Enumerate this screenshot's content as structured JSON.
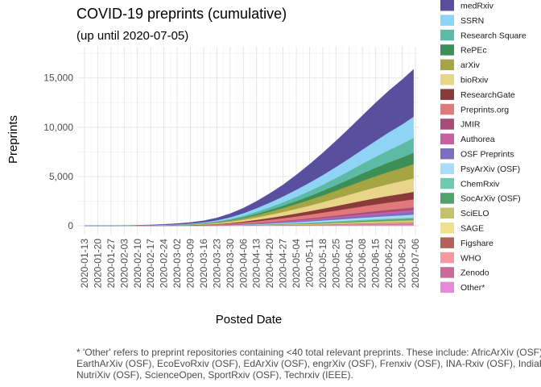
{
  "chart_data": {
    "type": "area",
    "stacked": true,
    "title": "COVID-19 preprints (cumulative)",
    "subtitle": "(up until 2020-07-05)",
    "xlabel": "Posted Date",
    "ylabel": "Preprints",
    "x_range": [
      "2020-01-13",
      "2020-07-05"
    ],
    "ylim": [
      0,
      18000
    ],
    "y_ticks": [
      0,
      5000,
      10000,
      15000
    ],
    "y_tick_labels": [
      "0",
      "5,000",
      "10,000",
      "15,000"
    ],
    "x_tick_labels": [
      "2020-01-13",
      "2020-01-20",
      "2020-01-27",
      "2020-02-03",
      "2020-02-10",
      "2020-02-17",
      "2020-02-24",
      "2020-03-02",
      "2020-03-09",
      "2020-03-16",
      "2020-03-23",
      "2020-03-30",
      "2020-04-06",
      "2020-04-13",
      "2020-04-20",
      "2020-04-27",
      "2020-05-04",
      "2020-05-11",
      "2020-05-18",
      "2020-05-25",
      "2020-06-01",
      "2020-06-08",
      "2020-06-15",
      "2020-06-22",
      "2020-06-29",
      "2020-07-06"
    ],
    "grid": true,
    "legend_position": "right",
    "x": [
      "2020-01-13",
      "2020-01-20",
      "2020-01-27",
      "2020-02-03",
      "2020-02-10",
      "2020-02-17",
      "2020-02-24",
      "2020-03-02",
      "2020-03-09",
      "2020-03-16",
      "2020-03-23",
      "2020-03-30",
      "2020-04-06",
      "2020-04-13",
      "2020-04-20",
      "2020-04-27",
      "2020-05-04",
      "2020-05-11",
      "2020-05-18",
      "2020-05-25",
      "2020-06-01",
      "2020-06-08",
      "2020-06-15",
      "2020-06-22",
      "2020-06-29",
      "2020-07-05"
    ],
    "series": [
      {
        "name": "medRxiv",
        "color": "#5a4f9f",
        "values": [
          0,
          0,
          0,
          5,
          15,
          30,
          50,
          75,
          110,
          160,
          240,
          370,
          520,
          700,
          930,
          1180,
          1500,
          1860,
          2240,
          2640,
          3040,
          3450,
          3860,
          4220,
          4540,
          4800
        ]
      },
      {
        "name": "SSRN",
        "color": "#8fd4f5",
        "values": [
          0,
          0,
          0,
          2,
          6,
          12,
          20,
          30,
          45,
          70,
          110,
          170,
          250,
          360,
          470,
          590,
          720,
          850,
          980,
          1120,
          1270,
          1440,
          1620,
          1800,
          1980,
          2150
        ]
      },
      {
        "name": "Research Square",
        "color": "#5dbaa5",
        "values": [
          0,
          0,
          0,
          1,
          3,
          6,
          10,
          15,
          25,
          40,
          70,
          110,
          160,
          220,
          280,
          350,
          430,
          520,
          620,
          730,
          850,
          980,
          1110,
          1250,
          1380,
          1500
        ]
      },
      {
        "name": "RePEc",
        "color": "#3d8f57",
        "values": [
          0,
          0,
          0,
          0,
          1,
          2,
          4,
          6,
          10,
          18,
          30,
          50,
          80,
          120,
          170,
          230,
          300,
          380,
          470,
          560,
          660,
          760,
          860,
          960,
          1050,
          1150
        ]
      },
      {
        "name": "arXiv",
        "color": "#a5a543",
        "values": [
          0,
          0,
          0,
          1,
          3,
          6,
          10,
          15,
          25,
          40,
          70,
          110,
          170,
          240,
          320,
          400,
          490,
          580,
          680,
          790,
          900,
          1020,
          1130,
          1240,
          1340,
          1450
        ]
      },
      {
        "name": "bioRxiv",
        "color": "#e8d58a",
        "values": [
          0,
          0,
          0,
          2,
          6,
          12,
          20,
          28,
          40,
          60,
          90,
          130,
          180,
          240,
          310,
          390,
          470,
          560,
          660,
          770,
          880,
          990,
          1100,
          1200,
          1290,
          1370
        ]
      },
      {
        "name": "ResearchGate",
        "color": "#8b3a3a",
        "values": [
          0,
          0,
          0,
          0,
          1,
          3,
          6,
          10,
          16,
          25,
          40,
          65,
          100,
          150,
          200,
          250,
          300,
          350,
          400,
          460,
          520,
          580,
          630,
          680,
          720,
          760
        ]
      },
      {
        "name": "Preprints.org",
        "color": "#e07a7a",
        "values": [
          0,
          0,
          0,
          2,
          5,
          10,
          16,
          22,
          30,
          42,
          60,
          85,
          120,
          160,
          210,
          260,
          320,
          380,
          440,
          500,
          560,
          620,
          680,
          730,
          780,
          820
        ]
      },
      {
        "name": "JMIR",
        "color": "#a64d79",
        "values": [
          0,
          0,
          0,
          0,
          0,
          1,
          2,
          3,
          5,
          8,
          12,
          18,
          26,
          36,
          48,
          62,
          78,
          96,
          116,
          138,
          160,
          184,
          208,
          230,
          250,
          270
        ]
      },
      {
        "name": "Authorea",
        "color": "#c85fa3",
        "values": [
          0,
          0,
          0,
          0,
          1,
          2,
          3,
          4,
          6,
          9,
          13,
          18,
          25,
          34,
          44,
          56,
          70,
          84,
          98,
          112,
          126,
          140,
          154,
          168,
          180,
          190
        ]
      },
      {
        "name": "OSF Preprints",
        "color": "#7b6fc4",
        "values": [
          0,
          0,
          0,
          0,
          1,
          2,
          3,
          5,
          8,
          12,
          18,
          28,
          40,
          55,
          72,
          90,
          110,
          130,
          150,
          170,
          190,
          210,
          228,
          246,
          262,
          278
        ]
      },
      {
        "name": "PsyArXiv (OSF)",
        "color": "#a8dcf7",
        "values": [
          0,
          0,
          0,
          0,
          0,
          0,
          1,
          1,
          2,
          4,
          8,
          16,
          28,
          42,
          58,
          76,
          96,
          116,
          136,
          156,
          176,
          196,
          214,
          232,
          248,
          264
        ]
      },
      {
        "name": "ChemRxiv",
        "color": "#6dcab0",
        "values": [
          0,
          0,
          0,
          0,
          0,
          1,
          1,
          2,
          3,
          5,
          8,
          12,
          18,
          26,
          34,
          44,
          54,
          64,
          74,
          84,
          94,
          104,
          114,
          124,
          132,
          140
        ]
      },
      {
        "name": "SocArXiv (OSF)",
        "color": "#4fa36b",
        "values": [
          0,
          0,
          0,
          0,
          0,
          0,
          0,
          1,
          1,
          2,
          4,
          8,
          14,
          22,
          30,
          40,
          50,
          60,
          70,
          80,
          90,
          100,
          110,
          118,
          126,
          134
        ]
      },
      {
        "name": "SciELO",
        "color": "#c2c26a",
        "values": [
          0,
          0,
          0,
          0,
          0,
          0,
          0,
          0,
          0,
          0,
          1,
          2,
          4,
          8,
          14,
          22,
          32,
          44,
          58,
          72,
          86,
          100,
          112,
          124,
          134,
          144
        ]
      },
      {
        "name": "SAGE",
        "color": "#f0e08a",
        "values": [
          0,
          0,
          0,
          0,
          0,
          0,
          0,
          0,
          1,
          2,
          4,
          7,
          11,
          16,
          22,
          28,
          34,
          40,
          46,
          52,
          58,
          64,
          70,
          76,
          80,
          84
        ]
      },
      {
        "name": "Figshare",
        "color": "#b5615b",
        "values": [
          0,
          0,
          0,
          0,
          0,
          0,
          1,
          1,
          2,
          3,
          5,
          8,
          12,
          16,
          20,
          24,
          28,
          32,
          36,
          40,
          44,
          48,
          52,
          56,
          60,
          64
        ]
      },
      {
        "name": "WHO",
        "color": "#f598a0",
        "values": [
          0,
          0,
          0,
          0,
          0,
          0,
          0,
          0,
          0,
          0,
          0,
          0,
          0,
          0,
          0,
          0,
          0,
          0,
          10,
          25,
          45,
          60,
          75,
          90,
          100,
          110
        ]
      },
      {
        "name": "Zenodo",
        "color": "#c86b98",
        "values": [
          0,
          0,
          0,
          0,
          0,
          1,
          1,
          2,
          3,
          4,
          6,
          9,
          12,
          16,
          20,
          25,
          30,
          35,
          40,
          45,
          50,
          55,
          60,
          64,
          68,
          72
        ]
      },
      {
        "name": "Other*",
        "color": "#e58ad6",
        "values": [
          0,
          0,
          0,
          0,
          0,
          0,
          1,
          2,
          3,
          5,
          8,
          12,
          17,
          23,
          30,
          38,
          46,
          54,
          62,
          70,
          78,
          86,
          94,
          102,
          110,
          118
        ]
      }
    ]
  },
  "footnote": {
    "line1": "* 'Other' refers to preprint repositories containing <40 total relevant preprints. These include: AfricArXiv (OSF), Arabixiv (OSF), bioRxiv",
    "line2": "EarthArXiv (OSF), EcoEvoRxiv (OSF), EdArXiv (OSF), engrXiv (OSF), Frenxiv (OSF), INA-Rxiv (OSF), IndiaRxiv (OSF), MediArXiv (OSF),",
    "line3": "NutriXiv (OSF), ScienceOpen, SportRxiv (OSF), Techrxiv (IEEE)."
  }
}
